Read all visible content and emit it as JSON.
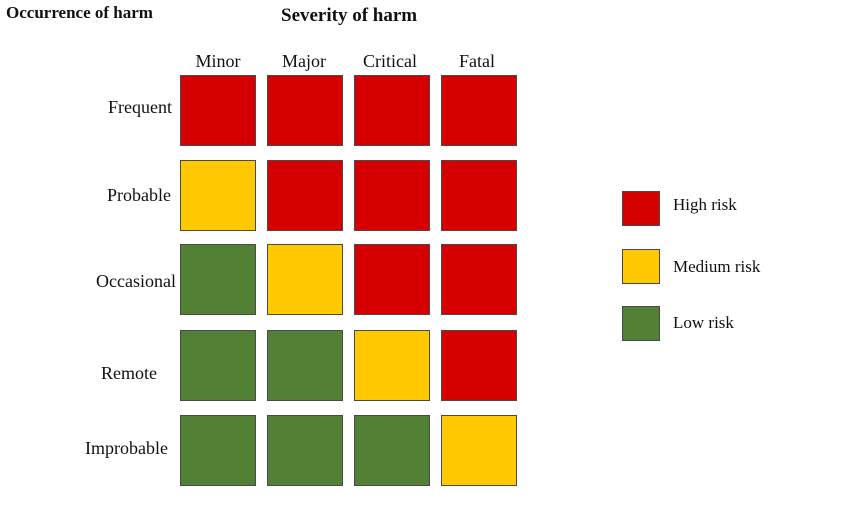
{
  "titles": {
    "occurrence": "Occurrence of harm",
    "severity": "Severity of harm"
  },
  "severity_levels": [
    "Minor",
    "Major",
    "Critical",
    "Fatal"
  ],
  "occurrence_levels": [
    "Frequent",
    "Probable",
    "Occasional",
    "Remote",
    "Improbable"
  ],
  "matrix": [
    [
      "high",
      "high",
      "high",
      "high"
    ],
    [
      "medium",
      "high",
      "high",
      "high"
    ],
    [
      "low",
      "medium",
      "high",
      "high"
    ],
    [
      "low",
      "low",
      "medium",
      "high"
    ],
    [
      "low",
      "low",
      "low",
      "medium"
    ]
  ],
  "colors": {
    "high": "#d60000",
    "medium": "#ffc800",
    "low": "#528135"
  },
  "legend": [
    {
      "level": "high",
      "label": "High risk"
    },
    {
      "level": "medium",
      "label": "Medium risk"
    },
    {
      "level": "low",
      "label": "Low risk"
    }
  ]
}
